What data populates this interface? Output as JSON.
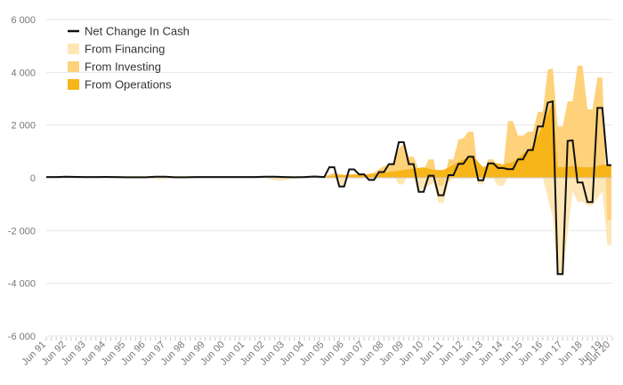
{
  "chart_data": {
    "type": "area",
    "title": "",
    "xlabel": "",
    "ylabel": "",
    "ylim": [
      -6000,
      6000
    ],
    "yticks": [
      6000,
      4000,
      2000,
      0,
      -2000,
      -4000,
      -6000
    ],
    "ytick_labels": [
      "6 000",
      "4 000",
      "2 000",
      "0",
      "-2 000",
      "-4 000",
      "-6 000"
    ],
    "xlim": [
      1991.5,
      2020.0
    ],
    "xticks": [
      1991.5,
      1992.5,
      1993.5,
      1994.5,
      1995.5,
      1996.5,
      1997.5,
      1998.5,
      1999.5,
      2000.5,
      2001.5,
      2002.5,
      2003.5,
      2004.5,
      2005.5,
      2006.5,
      2007.5,
      2008.5,
      2009.5,
      2010.5,
      2011.5,
      2012.5,
      2013.5,
      2014.5,
      2015.5,
      2016.5,
      2017.5,
      2018.5,
      2019.5,
      2020.5
    ],
    "xtick_labels": [
      "Jun 91",
      "Jun 92",
      "Jun 93",
      "Jun 94",
      "Jun 95",
      "Jun 96",
      "Jun 97",
      "Jun 98",
      "Jun 99",
      "Jun 00",
      "Jun 01",
      "Jun 02",
      "Jun 03",
      "Jun 04",
      "Jun 05",
      "Jun 06",
      "Jun 07",
      "Jun 08",
      "Jun 09",
      "Jun 10",
      "Jun 11",
      "Jun 12",
      "Jun 13",
      "Jun 14",
      "Jun 15",
      "Jun 16",
      "Jun 17",
      "Jun 18",
      "Jun 19",
      "Jun 20"
    ],
    "grid": true,
    "legend_position": "top-left",
    "colors": {
      "net": "#111111",
      "financing": "#fde7b6",
      "investing": "#fdd27a",
      "operations": "#f7b51a",
      "grid": "#e6e6e6",
      "tick": "#777777"
    },
    "legend": [
      {
        "label": "Net Change In Cash",
        "kind": "line"
      },
      {
        "label": "From Financing",
        "kind": "financing"
      },
      {
        "label": "From Investing",
        "kind": "investing"
      },
      {
        "label": "From Operations",
        "kind": "operations"
      }
    ],
    "series": [
      {
        "name": "Net Change In Cash",
        "points": [
          [
            1991.5,
            30
          ],
          [
            1992.0,
            30
          ],
          [
            1992.5,
            40
          ],
          [
            1993.0,
            35
          ],
          [
            1993.5,
            30
          ],
          [
            1994.0,
            30
          ],
          [
            1994.5,
            35
          ],
          [
            1995.0,
            30
          ],
          [
            1995.5,
            20
          ],
          [
            1996.0,
            20
          ],
          [
            1996.5,
            20
          ],
          [
            1997.0,
            40
          ],
          [
            1997.5,
            40
          ],
          [
            1998.0,
            20
          ],
          [
            1998.5,
            20
          ],
          [
            1999.0,
            30
          ],
          [
            1999.5,
            30
          ],
          [
            2000.0,
            30
          ],
          [
            2000.5,
            30
          ],
          [
            2001.0,
            30
          ],
          [
            2001.5,
            30
          ],
          [
            2002.0,
            30
          ],
          [
            2002.5,
            40
          ],
          [
            2003.0,
            40
          ],
          [
            2003.5,
            30
          ],
          [
            2004.0,
            20
          ],
          [
            2004.5,
            30
          ],
          [
            2005.0,
            50
          ],
          [
            2005.5,
            30
          ],
          [
            2005.75,
            400
          ],
          [
            2006.0,
            400
          ],
          [
            2006.25,
            -330
          ],
          [
            2006.5,
            -330
          ],
          [
            2006.75,
            320
          ],
          [
            2007.0,
            320
          ],
          [
            2007.25,
            130
          ],
          [
            2007.5,
            130
          ],
          [
            2007.75,
            -80
          ],
          [
            2008.0,
            -80
          ],
          [
            2008.25,
            220
          ],
          [
            2008.5,
            220
          ],
          [
            2008.75,
            520
          ],
          [
            2009.0,
            520
          ],
          [
            2009.25,
            1350
          ],
          [
            2009.5,
            1350
          ],
          [
            2009.75,
            520
          ],
          [
            2010.0,
            520
          ],
          [
            2010.25,
            -530
          ],
          [
            2010.5,
            -530
          ],
          [
            2010.75,
            80
          ],
          [
            2011.0,
            80
          ],
          [
            2011.25,
            -660
          ],
          [
            2011.5,
            -660
          ],
          [
            2011.75,
            100
          ],
          [
            2012.0,
            100
          ],
          [
            2012.25,
            530
          ],
          [
            2012.5,
            530
          ],
          [
            2012.75,
            800
          ],
          [
            2013.0,
            800
          ],
          [
            2013.25,
            -90
          ],
          [
            2013.5,
            -90
          ],
          [
            2013.75,
            550
          ],
          [
            2014.0,
            550
          ],
          [
            2014.25,
            370
          ],
          [
            2014.5,
            370
          ],
          [
            2014.75,
            330
          ],
          [
            2015.0,
            330
          ],
          [
            2015.25,
            700
          ],
          [
            2015.5,
            700
          ],
          [
            2015.75,
            1050
          ],
          [
            2016.0,
            1050
          ],
          [
            2016.25,
            1950
          ],
          [
            2016.5,
            1950
          ],
          [
            2016.75,
            2850
          ],
          [
            2017.0,
            2900
          ],
          [
            2017.25,
            -3650
          ],
          [
            2017.5,
            -3650
          ],
          [
            2017.75,
            1400
          ],
          [
            2018.0,
            1420
          ],
          [
            2018.25,
            -180
          ],
          [
            2018.5,
            -180
          ],
          [
            2018.75,
            -920
          ],
          [
            2019.0,
            -920
          ],
          [
            2019.25,
            2650
          ],
          [
            2019.5,
            2650
          ],
          [
            2019.75,
            480
          ],
          [
            2019.95,
            480
          ]
        ]
      },
      {
        "name": "From Financing",
        "points": [
          [
            1991.5,
            0
          ],
          [
            1996.5,
            0
          ],
          [
            1997.0,
            -50
          ],
          [
            1997.5,
            -50
          ],
          [
            1998.0,
            0
          ],
          [
            2002.5,
            0
          ],
          [
            2003.0,
            -100
          ],
          [
            2003.5,
            -100
          ],
          [
            2004.0,
            0
          ],
          [
            2005.5,
            0
          ],
          [
            2006.0,
            100
          ],
          [
            2006.25,
            -300
          ],
          [
            2006.5,
            -300
          ],
          [
            2006.75,
            150
          ],
          [
            2007.0,
            100
          ],
          [
            2007.5,
            0
          ],
          [
            2008.0,
            -100
          ],
          [
            2008.5,
            100
          ],
          [
            2008.75,
            200
          ],
          [
            2009.0,
            100
          ],
          [
            2009.25,
            -250
          ],
          [
            2009.5,
            -250
          ],
          [
            2009.75,
            200
          ],
          [
            2010.0,
            0
          ],
          [
            2010.25,
            -500
          ],
          [
            2010.5,
            -400
          ],
          [
            2011.0,
            -200
          ],
          [
            2011.25,
            -950
          ],
          [
            2011.5,
            -950
          ],
          [
            2011.75,
            -200
          ],
          [
            2012.0,
            0
          ],
          [
            2012.5,
            300
          ],
          [
            2012.75,
            800
          ],
          [
            2013.0,
            600
          ],
          [
            2013.25,
            -250
          ],
          [
            2013.5,
            -250
          ],
          [
            2013.75,
            300
          ],
          [
            2014.0,
            0
          ],
          [
            2014.25,
            -300
          ],
          [
            2014.5,
            -300
          ],
          [
            2014.75,
            0
          ],
          [
            2015.5,
            0
          ],
          [
            2016.0,
            0
          ],
          [
            2016.5,
            0
          ],
          [
            2017.0,
            -1500
          ],
          [
            2017.25,
            -3700
          ],
          [
            2017.5,
            -3700
          ],
          [
            2018.0,
            -500
          ],
          [
            2018.25,
            -900
          ],
          [
            2018.5,
            -900
          ],
          [
            2018.75,
            -1050
          ],
          [
            2019.0,
            -1050
          ],
          [
            2019.5,
            -500
          ],
          [
            2019.75,
            -2550
          ],
          [
            2019.95,
            -2550
          ]
        ]
      },
      {
        "name": "From Investing",
        "points": [
          [
            1991.5,
            60
          ],
          [
            2005.5,
            60
          ],
          [
            2006.0,
            200
          ],
          [
            2006.5,
            100
          ],
          [
            2007.0,
            150
          ],
          [
            2007.5,
            100
          ],
          [
            2008.0,
            200
          ],
          [
            2008.5,
            450
          ],
          [
            2008.75,
            500
          ],
          [
            2009.0,
            600
          ],
          [
            2009.25,
            1100
          ],
          [
            2009.5,
            1300
          ],
          [
            2009.75,
            800
          ],
          [
            2010.0,
            800
          ],
          [
            2010.25,
            300
          ],
          [
            2010.5,
            300
          ],
          [
            2010.75,
            700
          ],
          [
            2011.0,
            700
          ],
          [
            2011.25,
            -300
          ],
          [
            2011.5,
            -300
          ],
          [
            2011.75,
            700
          ],
          [
            2012.0,
            700
          ],
          [
            2012.25,
            1450
          ],
          [
            2012.5,
            1500
          ],
          [
            2012.75,
            1750
          ],
          [
            2013.0,
            1750
          ],
          [
            2013.25,
            100
          ],
          [
            2013.5,
            100
          ],
          [
            2013.75,
            700
          ],
          [
            2014.0,
            700
          ],
          [
            2014.25,
            300
          ],
          [
            2014.5,
            300
          ],
          [
            2014.75,
            2150
          ],
          [
            2015.0,
            2150
          ],
          [
            2015.25,
            1600
          ],
          [
            2015.5,
            1600
          ],
          [
            2015.75,
            1750
          ],
          [
            2016.0,
            1750
          ],
          [
            2016.25,
            2500
          ],
          [
            2016.5,
            2500
          ],
          [
            2016.75,
            4100
          ],
          [
            2017.0,
            4150
          ],
          [
            2017.25,
            1950
          ],
          [
            2017.5,
            1950
          ],
          [
            2017.75,
            2900
          ],
          [
            2018.0,
            2900
          ],
          [
            2018.25,
            4250
          ],
          [
            2018.5,
            4250
          ],
          [
            2018.75,
            2600
          ],
          [
            2019.0,
            2600
          ],
          [
            2019.25,
            3800
          ],
          [
            2019.5,
            3800
          ],
          [
            2019.75,
            -1600
          ],
          [
            2019.95,
            -1600
          ]
        ]
      },
      {
        "name": "From Operations",
        "points": [
          [
            1991.5,
            30
          ],
          [
            2005.5,
            30
          ],
          [
            2006.0,
            100
          ],
          [
            2007.0,
            120
          ],
          [
            2008.0,
            150
          ],
          [
            2009.0,
            250
          ],
          [
            2009.5,
            300
          ],
          [
            2010.0,
            350
          ],
          [
            2010.5,
            400
          ],
          [
            2011.0,
            300
          ],
          [
            2011.5,
            300
          ],
          [
            2012.0,
            500
          ],
          [
            2012.5,
            700
          ],
          [
            2013.0,
            800
          ],
          [
            2013.5,
            400
          ],
          [
            2014.0,
            600
          ],
          [
            2014.5,
            500
          ],
          [
            2015.0,
            600
          ],
          [
            2015.5,
            900
          ],
          [
            2016.0,
            1200
          ],
          [
            2016.5,
            2000
          ],
          [
            2017.0,
            2900
          ],
          [
            2017.25,
            400
          ],
          [
            2017.5,
            400
          ],
          [
            2018.0,
            450
          ],
          [
            2018.5,
            400
          ],
          [
            2019.0,
            400
          ],
          [
            2019.5,
            500
          ],
          [
            2019.95,
            500
          ]
        ]
      }
    ]
  }
}
